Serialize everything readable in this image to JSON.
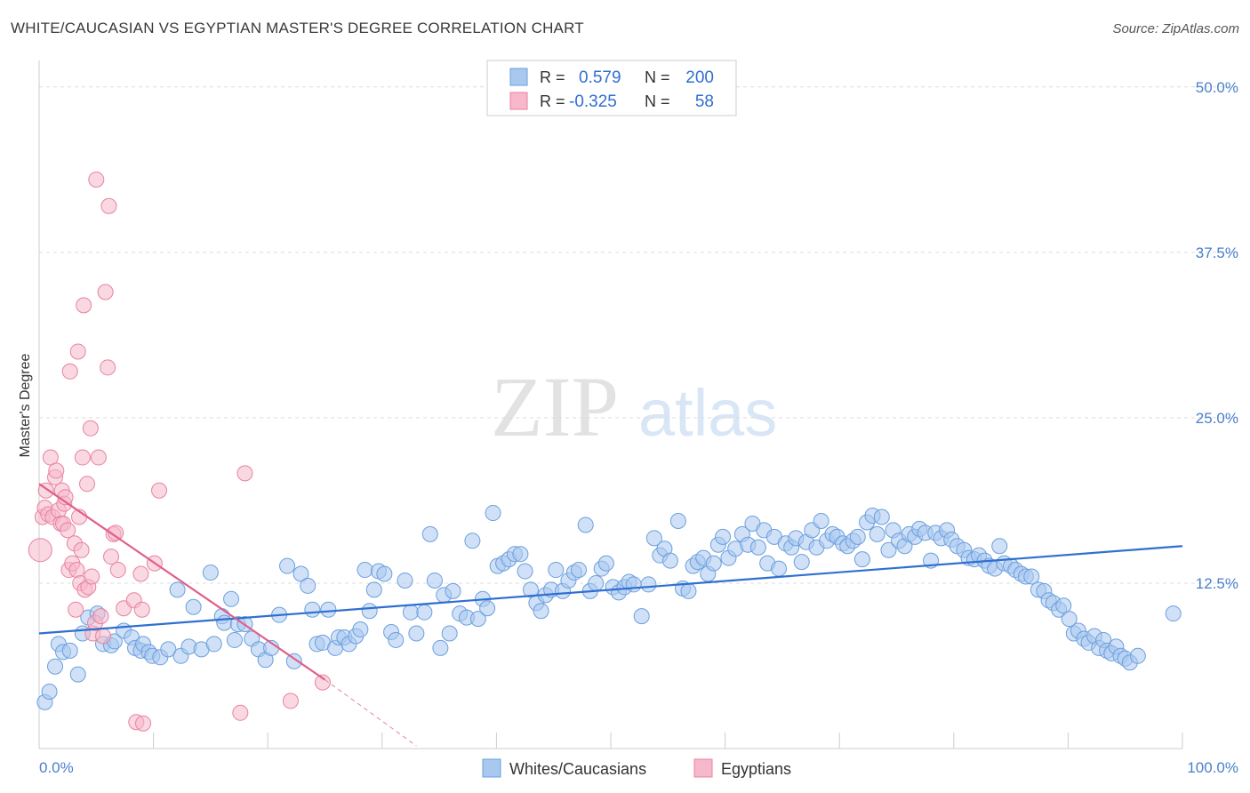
{
  "header": {
    "title": "WHITE/CAUCASIAN VS EGYPTIAN MASTER'S DEGREE CORRELATION CHART",
    "source": "Source: ZipAtlas.com"
  },
  "watermark": {
    "zip": "ZIP",
    "atlas": "atlas"
  },
  "legend_stats": [
    {
      "r_label": "R =",
      "r_value": "0.579",
      "n_label": "N =",
      "n_value": "200"
    },
    {
      "r_label": "R =",
      "r_value": "-0.325",
      "n_label": "N =",
      "n_value": "58"
    }
  ],
  "colors": {
    "blue_fill": "#a9c8f0",
    "blue_stroke": "#6a9fdd",
    "blue_line": "#2f6fd0",
    "pink_fill": "#f6b8ca",
    "pink_stroke": "#e8829f",
    "pink_line": "#e0608a",
    "tick_text": "#4a7fcc",
    "grid": "#dcdcdc"
  },
  "chart_data": {
    "type": "scatter",
    "title": "WHITE/CAUCASIAN VS EGYPTIAN MASTER'S DEGREE CORRELATION CHART",
    "xlabel": "",
    "ylabel": "Master's Degree",
    "xlim": [
      0,
      100
    ],
    "ylim": [
      0,
      52
    ],
    "x_tick_labels": [
      "0.0%",
      "100.0%"
    ],
    "y_ticks": [
      {
        "value": 12.5,
        "label": "12.5%"
      },
      {
        "value": 25.0,
        "label": "25.0%"
      },
      {
        "value": 37.5,
        "label": "37.5%"
      },
      {
        "value": 50.0,
        "label": "50.0%"
      }
    ],
    "grid": true,
    "legend_position": "bottom",
    "series": [
      {
        "name": "Whites/Caucasians",
        "color": "#a9c8f0",
        "trend": {
          "x0": 0,
          "y0": 8.7,
          "x1": 100,
          "y1": 15.3
        },
        "points": [
          [
            0.5,
            3.5
          ],
          [
            0.9,
            4.3
          ],
          [
            1.4,
            6.2
          ],
          [
            1.7,
            7.9
          ],
          [
            2.1,
            7.3
          ],
          [
            2.7,
            7.4
          ],
          [
            3.4,
            5.6
          ],
          [
            3.8,
            8.7
          ],
          [
            4.3,
            9.9
          ],
          [
            5.1,
            10.2
          ],
          [
            5.6,
            7.9
          ],
          [
            6.3,
            7.8
          ],
          [
            6.6,
            8.1
          ],
          [
            7.4,
            8.9
          ],
          [
            8.1,
            8.4
          ],
          [
            8.4,
            7.6
          ],
          [
            8.9,
            7.4
          ],
          [
            9.1,
            7.9
          ],
          [
            9.6,
            7.3
          ],
          [
            9.9,
            7.0
          ],
          [
            10.6,
            6.9
          ],
          [
            11.3,
            7.5
          ],
          [
            12.1,
            12.0
          ],
          [
            12.4,
            7.0
          ],
          [
            13.1,
            7.7
          ],
          [
            13.5,
            10.7
          ],
          [
            14.2,
            7.5
          ],
          [
            15.0,
            13.3
          ],
          [
            15.3,
            7.9
          ],
          [
            16.0,
            10.0
          ],
          [
            16.2,
            9.5
          ],
          [
            16.8,
            11.3
          ],
          [
            17.1,
            8.2
          ],
          [
            17.4,
            9.4
          ],
          [
            18.0,
            9.4
          ],
          [
            18.6,
            8.3
          ],
          [
            19.2,
            7.5
          ],
          [
            19.8,
            6.7
          ],
          [
            20.3,
            7.6
          ],
          [
            21.0,
            10.1
          ],
          [
            21.7,
            13.8
          ],
          [
            22.3,
            6.6
          ],
          [
            22.9,
            13.2
          ],
          [
            23.5,
            12.3
          ],
          [
            23.9,
            10.5
          ],
          [
            24.3,
            7.9
          ],
          [
            24.8,
            8.0
          ],
          [
            25.3,
            10.5
          ],
          [
            25.9,
            7.6
          ],
          [
            26.2,
            8.4
          ],
          [
            26.7,
            8.4
          ],
          [
            27.1,
            7.9
          ],
          [
            27.7,
            8.5
          ],
          [
            28.1,
            9.0
          ],
          [
            28.5,
            13.5
          ],
          [
            28.9,
            10.4
          ],
          [
            29.3,
            12.0
          ],
          [
            29.7,
            13.4
          ],
          [
            30.2,
            13.2
          ],
          [
            30.8,
            8.8
          ],
          [
            31.2,
            8.2
          ],
          [
            32.0,
            12.7
          ],
          [
            32.5,
            10.3
          ],
          [
            33.0,
            8.7
          ],
          [
            33.7,
            10.3
          ],
          [
            34.2,
            16.2
          ],
          [
            34.6,
            12.7
          ],
          [
            35.1,
            7.6
          ],
          [
            35.4,
            11.6
          ],
          [
            35.9,
            8.7
          ],
          [
            36.2,
            11.9
          ],
          [
            36.8,
            10.2
          ],
          [
            37.4,
            9.9
          ],
          [
            37.9,
            15.7
          ],
          [
            38.4,
            9.8
          ],
          [
            38.8,
            11.3
          ],
          [
            39.2,
            10.6
          ],
          [
            39.7,
            17.8
          ],
          [
            40.1,
            13.8
          ],
          [
            40.6,
            14.0
          ],
          [
            41.1,
            14.3
          ],
          [
            41.6,
            14.7
          ],
          [
            42.1,
            14.7
          ],
          [
            42.5,
            13.4
          ],
          [
            43.0,
            12.0
          ],
          [
            43.5,
            11.0
          ],
          [
            43.9,
            10.4
          ],
          [
            44.3,
            11.6
          ],
          [
            44.8,
            12.0
          ],
          [
            45.2,
            13.5
          ],
          [
            45.8,
            11.9
          ],
          [
            46.3,
            12.7
          ],
          [
            46.8,
            13.3
          ],
          [
            47.2,
            13.5
          ],
          [
            47.8,
            16.9
          ],
          [
            48.2,
            11.9
          ],
          [
            48.7,
            12.5
          ],
          [
            49.2,
            13.6
          ],
          [
            49.6,
            14.0
          ],
          [
            50.2,
            12.2
          ],
          [
            50.7,
            11.8
          ],
          [
            51.2,
            12.2
          ],
          [
            51.6,
            12.6
          ],
          [
            52.0,
            12.4
          ],
          [
            52.7,
            10.0
          ],
          [
            53.3,
            12.4
          ],
          [
            53.8,
            15.9
          ],
          [
            54.3,
            14.6
          ],
          [
            54.7,
            15.1
          ],
          [
            55.2,
            14.2
          ],
          [
            55.9,
            17.2
          ],
          [
            56.3,
            12.1
          ],
          [
            56.8,
            11.9
          ],
          [
            57.2,
            13.8
          ],
          [
            57.6,
            14.1
          ],
          [
            58.1,
            14.4
          ],
          [
            58.5,
            13.2
          ],
          [
            59.0,
            14.0
          ],
          [
            59.4,
            15.4
          ],
          [
            59.8,
            16.0
          ],
          [
            60.3,
            14.4
          ],
          [
            60.9,
            15.1
          ],
          [
            61.5,
            16.2
          ],
          [
            62.0,
            15.4
          ],
          [
            62.4,
            17.0
          ],
          [
            62.9,
            15.2
          ],
          [
            63.4,
            16.5
          ],
          [
            63.7,
            14.0
          ],
          [
            64.3,
            16.0
          ],
          [
            64.7,
            13.6
          ],
          [
            65.3,
            15.5
          ],
          [
            65.8,
            15.2
          ],
          [
            66.2,
            15.9
          ],
          [
            66.7,
            14.1
          ],
          [
            67.1,
            15.6
          ],
          [
            67.6,
            16.5
          ],
          [
            68.0,
            15.2
          ],
          [
            68.4,
            17.2
          ],
          [
            68.9,
            15.7
          ],
          [
            69.4,
            16.2
          ],
          [
            69.8,
            16.0
          ],
          [
            70.3,
            15.5
          ],
          [
            70.7,
            15.3
          ],
          [
            71.2,
            15.7
          ],
          [
            71.6,
            16.0
          ],
          [
            72.0,
            14.3
          ],
          [
            72.4,
            17.1
          ],
          [
            72.9,
            17.6
          ],
          [
            73.3,
            16.2
          ],
          [
            73.7,
            17.5
          ],
          [
            74.3,
            15.0
          ],
          [
            74.7,
            16.5
          ],
          [
            75.2,
            15.7
          ],
          [
            75.7,
            15.3
          ],
          [
            76.1,
            16.2
          ],
          [
            76.6,
            16.0
          ],
          [
            77.0,
            16.6
          ],
          [
            77.5,
            16.3
          ],
          [
            78.0,
            14.2
          ],
          [
            78.4,
            16.3
          ],
          [
            78.9,
            15.9
          ],
          [
            79.4,
            16.5
          ],
          [
            79.8,
            15.8
          ],
          [
            80.3,
            15.3
          ],
          [
            80.9,
            15.0
          ],
          [
            81.3,
            14.4
          ],
          [
            81.8,
            14.3
          ],
          [
            82.2,
            14.6
          ],
          [
            82.7,
            14.2
          ],
          [
            83.1,
            13.8
          ],
          [
            83.6,
            13.6
          ],
          [
            84.0,
            15.3
          ],
          [
            84.4,
            14.0
          ],
          [
            85.0,
            13.8
          ],
          [
            85.4,
            13.5
          ],
          [
            85.9,
            13.2
          ],
          [
            86.3,
            13.0
          ],
          [
            86.8,
            13.0
          ],
          [
            87.4,
            12.0
          ],
          [
            87.9,
            11.9
          ],
          [
            88.3,
            11.2
          ],
          [
            88.7,
            11.0
          ],
          [
            89.2,
            10.5
          ],
          [
            89.6,
            10.8
          ],
          [
            90.1,
            9.8
          ],
          [
            90.5,
            8.7
          ],
          [
            90.9,
            8.9
          ],
          [
            91.4,
            8.3
          ],
          [
            91.8,
            8.0
          ],
          [
            92.3,
            8.5
          ],
          [
            92.7,
            7.6
          ],
          [
            93.1,
            8.2
          ],
          [
            93.4,
            7.4
          ],
          [
            93.8,
            7.2
          ],
          [
            94.2,
            7.7
          ],
          [
            94.6,
            7.0
          ],
          [
            95.0,
            6.8
          ],
          [
            95.4,
            6.5
          ],
          [
            96.1,
            7.0
          ],
          [
            99.2,
            10.2
          ]
        ]
      },
      {
        "name": "Egyptians",
        "color": "#f6b8ca",
        "trend": {
          "x0": 0,
          "y0": 20.0,
          "x1": 25,
          "y1": 5.2
        },
        "trend_dashed": {
          "x0": 25,
          "y0": 5.2,
          "x1": 33,
          "y1": 0.2
        },
        "points": [
          [
            0.1,
            15.0
          ],
          [
            0.3,
            17.5
          ],
          [
            0.5,
            18.2
          ],
          [
            0.6,
            19.5
          ],
          [
            0.8,
            17.7
          ],
          [
            1.0,
            22.0
          ],
          [
            1.2,
            17.5
          ],
          [
            1.4,
            20.5
          ],
          [
            1.5,
            21.0
          ],
          [
            1.7,
            18.0
          ],
          [
            1.9,
            17.0
          ],
          [
            2.0,
            19.5
          ],
          [
            2.1,
            17.0
          ],
          [
            2.2,
            18.5
          ],
          [
            2.3,
            19.0
          ],
          [
            2.5,
            16.5
          ],
          [
            2.6,
            13.5
          ],
          [
            2.7,
            28.5
          ],
          [
            2.9,
            14.0
          ],
          [
            3.1,
            15.5
          ],
          [
            3.2,
            10.5
          ],
          [
            3.3,
            13.5
          ],
          [
            3.4,
            30.0
          ],
          [
            3.5,
            17.5
          ],
          [
            3.6,
            12.5
          ],
          [
            3.7,
            15.0
          ],
          [
            3.8,
            22.0
          ],
          [
            3.9,
            33.5
          ],
          [
            4.0,
            12.0
          ],
          [
            4.2,
            20.0
          ],
          [
            4.3,
            12.2
          ],
          [
            4.5,
            24.2
          ],
          [
            4.6,
            13.0
          ],
          [
            4.7,
            8.7
          ],
          [
            4.9,
            9.5
          ],
          [
            5.0,
            43.0
          ],
          [
            5.2,
            22.0
          ],
          [
            5.4,
            10.0
          ],
          [
            5.6,
            8.5
          ],
          [
            5.8,
            34.5
          ],
          [
            6.0,
            28.8
          ],
          [
            6.1,
            41.0
          ],
          [
            6.3,
            14.5
          ],
          [
            6.5,
            16.2
          ],
          [
            6.7,
            16.3
          ],
          [
            6.9,
            13.5
          ],
          [
            7.4,
            10.6
          ],
          [
            8.3,
            11.2
          ],
          [
            8.5,
            2.0
          ],
          [
            8.9,
            13.2
          ],
          [
            9.0,
            10.5
          ],
          [
            9.1,
            1.9
          ],
          [
            10.1,
            14.0
          ],
          [
            10.5,
            19.5
          ],
          [
            17.6,
            2.7
          ],
          [
            18.0,
            20.8
          ],
          [
            22.0,
            3.6
          ],
          [
            24.8,
            5.0
          ]
        ]
      }
    ]
  }
}
